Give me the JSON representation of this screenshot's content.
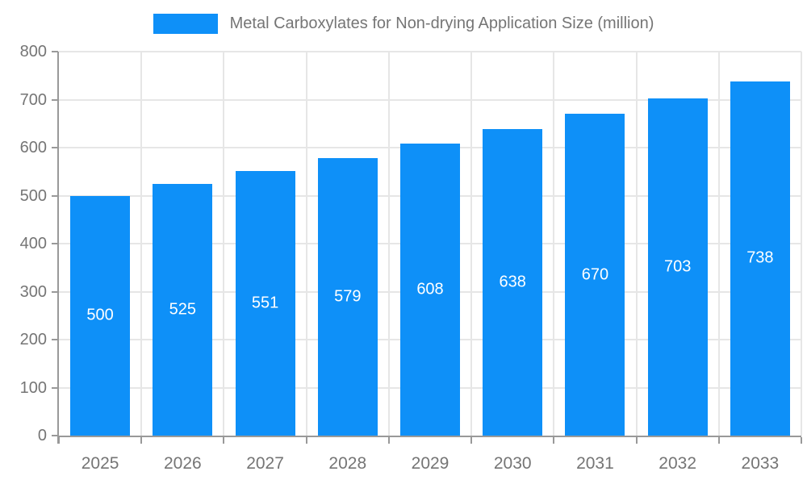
{
  "chart_data": {
    "type": "bar",
    "title": "Metal Carboxylates for Non-drying Application Size (million)",
    "legend": [
      "Metal Carboxylates for Non-drying Application Size (million)"
    ],
    "legend_position": "top-center",
    "categories": [
      "2025",
      "2026",
      "2027",
      "2028",
      "2029",
      "2030",
      "2031",
      "2032",
      "2033"
    ],
    "values": [
      500,
      525,
      551,
      579,
      608,
      638,
      670,
      703,
      738
    ],
    "value_labels": [
      "500",
      "525",
      "551",
      "579",
      "608",
      "638",
      "670",
      "703",
      "738"
    ],
    "value_label_position": "inside-center",
    "xlabel": "",
    "ylabel": "",
    "ylim": [
      0,
      800
    ],
    "yticks": [
      0,
      100,
      200,
      300,
      400,
      500,
      600,
      700,
      800
    ],
    "grid": true,
    "colors": {
      "bar": "#0e90f8",
      "value_label": "#ffffff",
      "axis": "#999999",
      "grid": "#e6e6e6",
      "text": "#757575"
    }
  }
}
